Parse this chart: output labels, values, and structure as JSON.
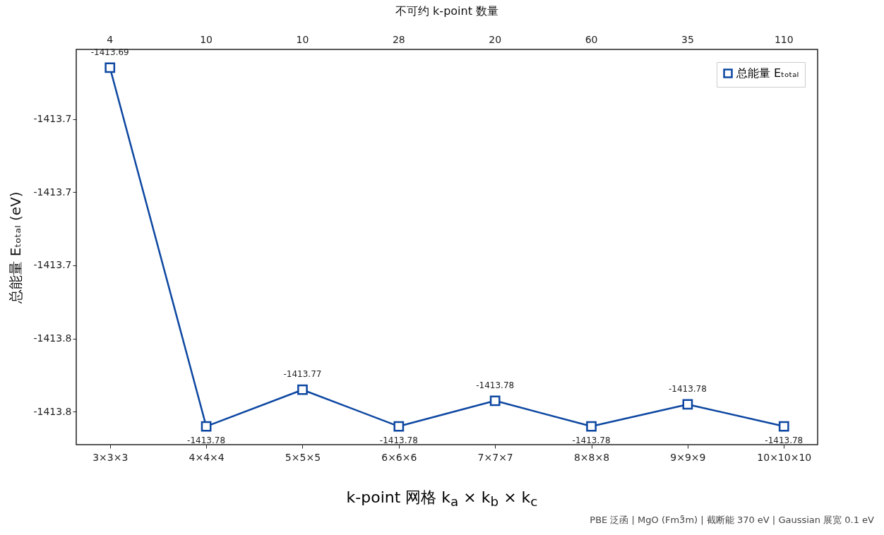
{
  "chart_data": {
    "type": "line",
    "x2label": "不可约 k-point 数量",
    "xlabel": "k-point 网格 k$_{a}$ × k$_{b}$ × k$_{c}$",
    "ylabel": "总能量 Eₜₒₜₐₗ (eV)",
    "categories": [
      "3×3×3",
      "4×4×4",
      "5×5×5",
      "6×6×6",
      "7×7×7",
      "8×8×8",
      "9×9×9",
      "10×10×10"
    ],
    "series": [
      {
        "name": "总能量 Eₜₒₜₐₗ",
        "color": "#0d47a1",
        "values": [
          -1413.686,
          -1413.784,
          -1413.774,
          -1413.784,
          -1413.777,
          -1413.784,
          -1413.778,
          -1413.784
        ],
        "value_labels": [
          "-1413.69",
          "-1413.78",
          "-1413.77",
          "-1413.78",
          "-1413.78",
          "-1413.78",
          "-1413.78",
          "-1413.78"
        ]
      }
    ],
    "ylim": [
      -1413.789,
      -1413.681
    ],
    "yticks": [
      {
        "value": -1413.7,
        "label": "-1413.7"
      },
      {
        "value": -1413.72,
        "label": "-1413.7"
      },
      {
        "value": -1413.74,
        "label": "-1413.7"
      },
      {
        "value": -1413.76,
        "label": "-1413.8"
      },
      {
        "value": -1413.78,
        "label": "-1413.8"
      }
    ],
    "marker": "square",
    "line_style": "solid",
    "grid": false,
    "legend": "top right",
    "annotations": [
      "PBE 泛函 | MgO (Fm3̄m) | 截断能 370 eV | Gaussian 展宽 0.1 eV",
      "4",
      "10",
      "10",
      "28",
      "20",
      "60",
      "35",
      "110"
    ]
  }
}
